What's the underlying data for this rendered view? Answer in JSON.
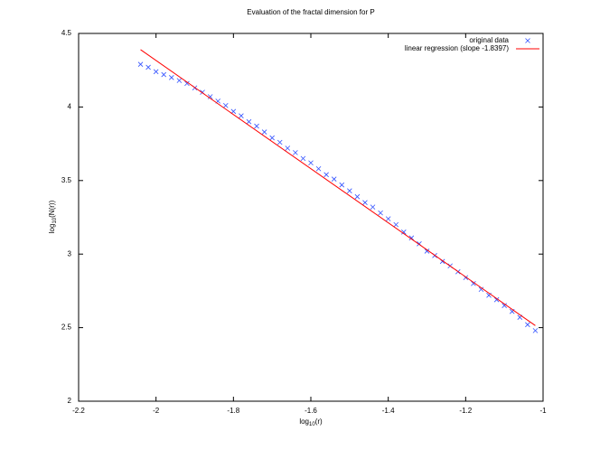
{
  "chart_data": {
    "type": "scatter",
    "title": "Evaluation of the fractal dimension for P",
    "xlabel": [
      "log",
      "10",
      "(r)"
    ],
    "ylabel": [
      "log",
      "10",
      "(N(r))"
    ],
    "xlim": [
      -2.2,
      -1
    ],
    "ylim": [
      2,
      4.5
    ],
    "xticks": [
      -2.2,
      -2,
      -1.8,
      -1.6,
      -1.4,
      -1.2,
      -1
    ],
    "yticks": [
      2,
      2.5,
      3,
      3.5,
      4,
      4.5
    ],
    "grid": false,
    "legend": "top-right",
    "series": [
      {
        "name": "original data",
        "color": "#3050ff",
        "marker": "x",
        "x": [
          -2.04,
          -2.02,
          -2.0,
          -1.98,
          -1.96,
          -1.94,
          -1.92,
          -1.9,
          -1.88,
          -1.86,
          -1.84,
          -1.82,
          -1.8,
          -1.78,
          -1.76,
          -1.74,
          -1.72,
          -1.7,
          -1.68,
          -1.66,
          -1.64,
          -1.62,
          -1.6,
          -1.58,
          -1.56,
          -1.54,
          -1.52,
          -1.5,
          -1.48,
          -1.46,
          -1.44,
          -1.42,
          -1.4,
          -1.38,
          -1.36,
          -1.34,
          -1.32,
          -1.3,
          -1.28,
          -1.26,
          -1.24,
          -1.22,
          -1.2,
          -1.18,
          -1.16,
          -1.14,
          -1.12,
          -1.1,
          -1.08,
          -1.06,
          -1.04,
          -1.02
        ],
        "values": [
          4.29,
          4.27,
          4.24,
          4.22,
          4.2,
          4.18,
          4.16,
          4.13,
          4.1,
          4.07,
          4.04,
          4.01,
          3.97,
          3.94,
          3.9,
          3.87,
          3.83,
          3.79,
          3.76,
          3.72,
          3.69,
          3.65,
          3.62,
          3.58,
          3.54,
          3.51,
          3.47,
          3.43,
          3.39,
          3.35,
          3.32,
          3.28,
          3.24,
          3.2,
          3.15,
          3.11,
          3.07,
          3.02,
          2.99,
          2.95,
          2.92,
          2.88,
          2.84,
          2.8,
          2.76,
          2.72,
          2.69,
          2.65,
          2.61,
          2.57,
          2.52,
          2.48
        ]
      },
      {
        "name": "linear regression (slope -1.8397)",
        "color": "#ff0000",
        "marker": "line",
        "x": [
          -2.04,
          -1.02
        ],
        "values": [
          4.39,
          2.514
        ]
      }
    ]
  }
}
